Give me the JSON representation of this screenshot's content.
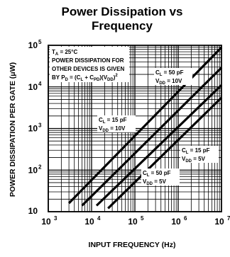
{
  "chart_data": {
    "type": "line",
    "title_line1": "Power Dissipation vs",
    "title_line2": "Frequency",
    "xlabel": "INPUT FREQUENCY (Hz)",
    "ylabel": "POWER DISSIPATION PER GATE (μW)",
    "x_scale": "log",
    "y_scale": "log",
    "xlim": [
      1000,
      10000000
    ],
    "ylim": [
      10,
      100000
    ],
    "grid": true,
    "x_ticks": [
      {
        "base": "10",
        "exp": "3",
        "value": 1000
      },
      {
        "base": "10",
        "exp": "4",
        "value": 10000
      },
      {
        "base": "10",
        "exp": "5",
        "value": 100000
      },
      {
        "base": "10",
        "exp": "6",
        "value": 1000000
      },
      {
        "base": "10",
        "exp": "7",
        "value": 10000000
      }
    ],
    "y_ticks": [
      {
        "base": "10",
        "exp": "",
        "value": 10
      },
      {
        "base": "10",
        "exp": "2",
        "value": 100
      },
      {
        "base": "10",
        "exp": "3",
        "value": 1000
      },
      {
        "base": "10",
        "exp": "4",
        "value": 10000
      },
      {
        "base": "10",
        "exp": "5",
        "value": 100000
      }
    ],
    "annotation_box": {
      "line1_main": "T",
      "line1_sub": "A",
      "line1_rest": " = 25°C",
      "line2": "POWER DISSIPATION FOR",
      "line3": "OTHER DEVICES IS GIVEN",
      "line4_a": "BY P",
      "line4_b": "D",
      "line4_c": " = (C",
      "line4_d": "L",
      "line4_e": " + C",
      "line4_f": "PD",
      "line4_g": ")(V",
      "line4_h": "DD",
      "line4_i": ")",
      "line4_j": "2"
    },
    "series": [
      {
        "label_line1": "C_L = 50 pF",
        "label_line2": "V_DD = 10V",
        "x": [
          3000,
          10000000
        ],
        "y": [
          16,
          89000
        ]
      },
      {
        "label_line1": "C_L = 15 pF",
        "label_line2": "V_DD = 10V",
        "x": [
          6000,
          10000000
        ],
        "y": [
          14,
          29000
        ]
      },
      {
        "label_line1": "C_L = 15 pF",
        "label_line2": "V_DD = 5V",
        "x": [
          24000,
          10000000
        ],
        "y": [
          12,
          5500
        ]
      },
      {
        "label_line1": "C_L = 50 pF",
        "label_line2": "V_DD = 5V",
        "x": [
          13000,
          10000000
        ],
        "y": [
          14,
          11000
        ]
      }
    ]
  }
}
